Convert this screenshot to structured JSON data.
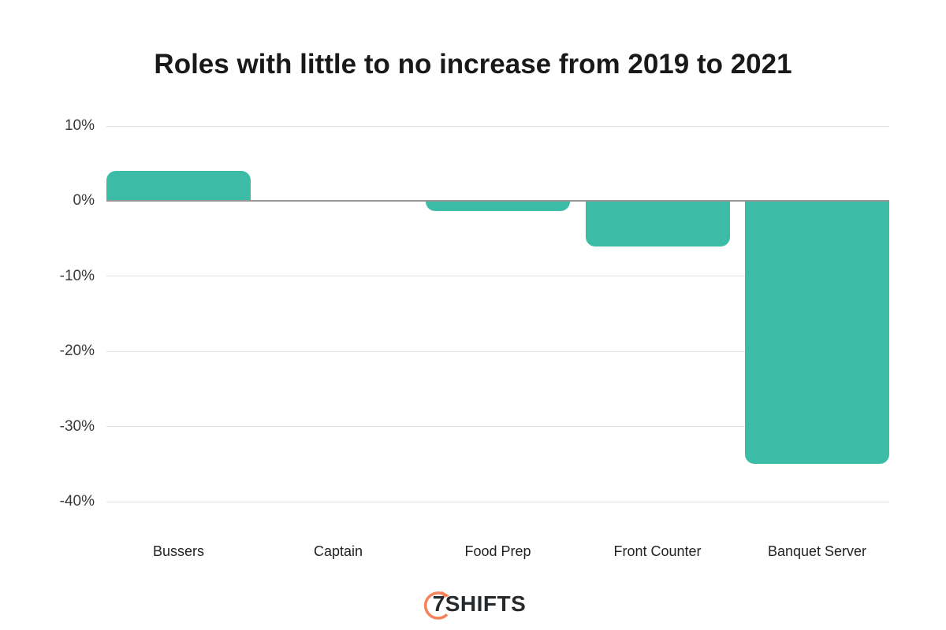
{
  "title": "Roles with little to no increase from 2019 to 2021",
  "chart_data": {
    "type": "bar",
    "title": "Roles with little to no increase from 2019 to 2021",
    "categories": [
      "Bussers",
      "Captain",
      "Food Prep",
      "Front Counter",
      "Banquet Server"
    ],
    "values": [
      4,
      0,
      -1.3,
      -6,
      -35
    ],
    "unit": "%",
    "xlabel": "",
    "ylabel": "",
    "ylim": [
      -40,
      10
    ],
    "yticks": [
      10,
      0,
      -10,
      -20,
      -30,
      -40
    ],
    "ytick_labels": [
      "10%",
      "0%",
      "-10%",
      "-20%",
      "-30%",
      "-40%"
    ],
    "grid": true,
    "legend_position": "none",
    "bar_color": "#3CBCA6",
    "gridline_color": "#e1e1e1",
    "zero_line_color": "#979797",
    "tick_label_color": "#3a3a3a",
    "category_label_color": "#222222"
  },
  "footer": {
    "logo_text": "7SHIFTS",
    "logo_icon": "stopwatch-arc-icon",
    "logo_arc_color": "#F5845C",
    "logo_text_color": "#26292B"
  }
}
